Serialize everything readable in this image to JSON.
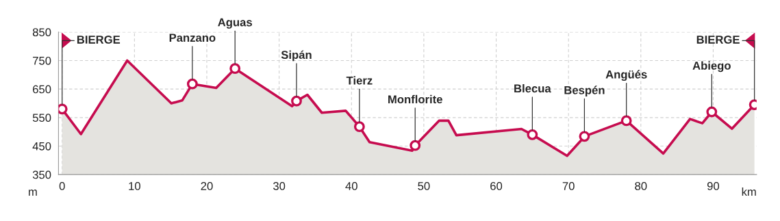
{
  "chart_data": {
    "type": "area",
    "xlabel": "km",
    "ylabel": "m",
    "x": [
      0,
      2.6,
      9.0,
      15.1,
      16.6,
      18.0,
      21.3,
      23.9,
      31.8,
      32.4,
      33.9,
      35.9,
      39.2,
      41.1,
      42.5,
      48.4,
      48.8,
      52.1,
      53.4,
      54.5,
      63.5,
      65.0,
      69.8,
      71.6,
      72.2,
      78.0,
      83.1,
      86.8,
      88.5,
      89.8,
      92.6,
      95.7
    ],
    "series": [
      {
        "color": "#c60c4f",
        "values": [
          580,
          492,
          750,
          600,
          610,
          668,
          654,
          722,
          590,
          608,
          630,
          567,
          574,
          518,
          464,
          434,
          452,
          539,
          539,
          488,
          510,
          490,
          416,
          466,
          484,
          539,
          424,
          545,
          530,
          570,
          511,
          595
        ]
      }
    ],
    "annotations": [
      {
        "text": "BIERGE",
        "x": 0,
        "y": 580
      },
      {
        "text": "Panzano",
        "x": 18.0,
        "y": 668
      },
      {
        "text": "Aguas",
        "x": 23.9,
        "y": 722
      },
      {
        "text": "Sipán",
        "x": 32.4,
        "y": 608
      },
      {
        "text": "Tierz",
        "x": 41.1,
        "y": 518
      },
      {
        "text": "Monflorite",
        "x": 48.8,
        "y": 452
      },
      {
        "text": "Blecua",
        "x": 65.0,
        "y": 490
      },
      {
        "text": "Bespén",
        "x": 72.2,
        "y": 484
      },
      {
        "text": "Angüés",
        "x": 78.0,
        "y": 539
      },
      {
        "text": "Abiego",
        "x": 89.8,
        "y": 570
      },
      {
        "text": "BIERGE",
        "x": 95.7,
        "y": 595
      }
    ],
    "xlim": [
      -0.5,
      96
    ],
    "ylim": [
      350,
      850
    ],
    "xticks": [
      0,
      10,
      20,
      30,
      40,
      50,
      60,
      70,
      80,
      90
    ],
    "yticks": [
      350,
      450,
      550,
      650,
      750,
      850
    ],
    "grid": true
  }
}
